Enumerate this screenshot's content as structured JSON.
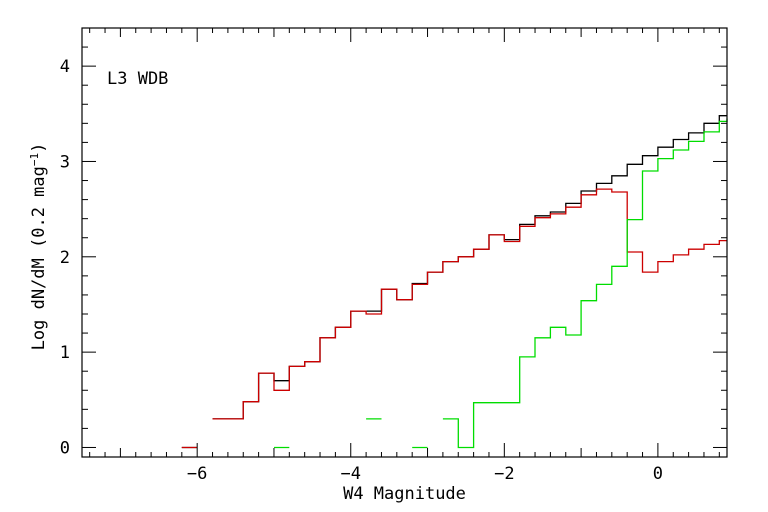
{
  "chart_data": {
    "type": "line",
    "step": true,
    "annotation": "L3 WDB",
    "xlabel": "W4 Magnitude",
    "ylabel_main": "Log dN/dM (0.2 mag",
    "ylabel_sup": "−1",
    "ylabel_end": ")",
    "xlim": [
      -7.5,
      0.9
    ],
    "ylim": [
      -0.1,
      4.4
    ],
    "xticks": [
      -6,
      -4,
      -2,
      0
    ],
    "xtick_labels": [
      "−6",
      "−4",
      "−2",
      "0"
    ],
    "yticks": [
      0,
      1,
      2,
      3,
      4
    ],
    "ytick_labels": [
      "0",
      "1",
      "2",
      "3",
      "4"
    ],
    "bin_width": 0.2,
    "series": [
      {
        "color": "#000000",
        "edges": [
          -6.2,
          -6.0,
          -5.8,
          -5.6,
          -5.4,
          -5.2,
          -5.0,
          -4.8,
          -4.6,
          -4.4,
          -4.2,
          -4.0,
          -3.8,
          -3.6,
          -3.4,
          -3.2,
          -3.0,
          -2.8,
          -2.6,
          -2.4,
          -2.2,
          -2.0,
          -1.8,
          -1.6,
          -1.4,
          -1.2,
          -1.0,
          -0.8,
          -0.6,
          -0.4,
          -0.2,
          0.0,
          0.2,
          0.4,
          0.6,
          0.8,
          0.9
        ],
        "values": [
          0.0,
          null,
          0.3,
          0.3,
          0.48,
          0.78,
          0.7,
          0.85,
          0.9,
          1.15,
          1.26,
          1.43,
          1.43,
          1.66,
          1.55,
          1.72,
          1.84,
          1.95,
          2.0,
          2.08,
          2.23,
          2.18,
          2.34,
          2.43,
          2.47,
          2.56,
          2.69,
          2.77,
          2.85,
          2.97,
          3.06,
          3.15,
          3.23,
          3.3,
          3.4,
          3.48
        ]
      },
      {
        "color": "#cc0000",
        "edges": [
          -6.2,
          -6.0,
          -5.8,
          -5.6,
          -5.4,
          -5.2,
          -5.0,
          -4.8,
          -4.6,
          -4.4,
          -4.2,
          -4.0,
          -3.8,
          -3.6,
          -3.4,
          -3.2,
          -3.0,
          -2.8,
          -2.6,
          -2.4,
          -2.2,
          -2.0,
          -1.8,
          -1.6,
          -1.4,
          -1.2,
          -1.0,
          -0.8,
          -0.6,
          -0.4,
          -0.2,
          0.0,
          0.2,
          0.4,
          0.6,
          0.8,
          0.9
        ],
        "values": [
          0.0,
          null,
          0.3,
          0.3,
          0.48,
          0.78,
          0.6,
          0.85,
          0.9,
          1.15,
          1.26,
          1.43,
          1.4,
          1.66,
          1.55,
          1.71,
          1.84,
          1.95,
          2.0,
          2.08,
          2.23,
          2.16,
          2.32,
          2.41,
          2.45,
          2.52,
          2.65,
          2.71,
          2.68,
          2.05,
          1.84,
          1.95,
          2.02,
          2.08,
          2.13,
          2.17
        ]
      },
      {
        "color": "#00dd00",
        "edges": [
          -5.0,
          -4.8,
          -3.8,
          -3.6,
          -3.2,
          -3.0,
          -2.8,
          -2.6,
          -2.4,
          -2.0,
          -1.8,
          -1.6,
          -1.4,
          -1.2,
          -1.0,
          -0.8,
          -0.6,
          -0.4,
          -0.2,
          0.0,
          0.2,
          0.4,
          0.6,
          0.8,
          0.9
        ],
        "values": [
          0.0,
          null,
          0.3,
          null,
          0.0,
          null,
          0.3,
          0.0,
          0.47,
          0.47,
          0.95,
          1.15,
          1.26,
          1.18,
          1.54,
          1.71,
          1.9,
          2.39,
          2.9,
          3.03,
          3.12,
          3.21,
          3.31,
          3.42,
          3.45
        ]
      }
    ]
  }
}
